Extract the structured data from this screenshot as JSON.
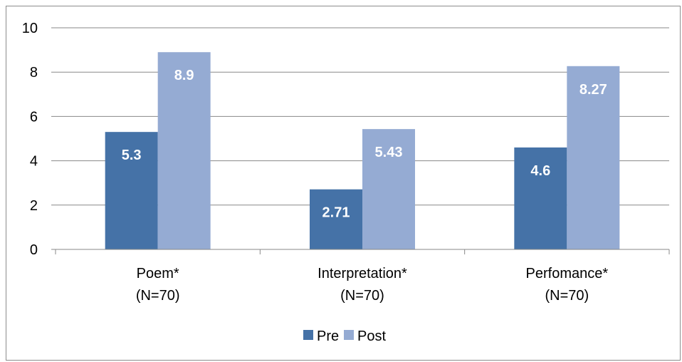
{
  "chart_data": {
    "type": "bar",
    "title": "",
    "xlabel": "",
    "ylabel": "",
    "categories": [
      [
        "Poem*",
        "(N=70)"
      ],
      [
        "Interpretation*",
        "(N=70)"
      ],
      [
        "Perfomance*",
        "(N=70)"
      ]
    ],
    "series": [
      {
        "name": "Pre",
        "values": [
          5.3,
          2.71,
          4.6
        ],
        "labels": [
          "5.3",
          "2.71",
          "4.6"
        ],
        "color": "#4572A7"
      },
      {
        "name": "Post",
        "values": [
          8.9,
          5.43,
          8.27
        ],
        "labels": [
          "8.9",
          "5.43",
          "8.27"
        ],
        "color": "#95ABD3"
      }
    ],
    "ylim": [
      0,
      10
    ],
    "yticks": [
      "0",
      "2",
      "4",
      "6",
      "8",
      "10"
    ],
    "grid": true,
    "legend_position": "bottom",
    "gridline_color": "#888888"
  }
}
